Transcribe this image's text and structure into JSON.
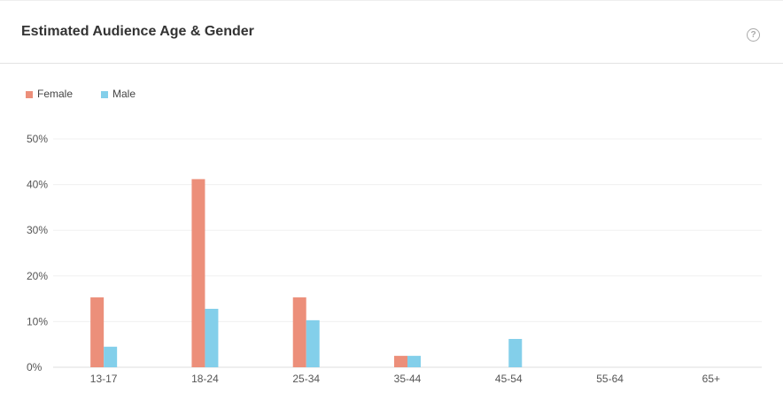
{
  "header": {
    "title": "Estimated Audience Age & Gender",
    "help_icon": "?"
  },
  "colors": {
    "female": "#ec8f7a",
    "male": "#83cfea"
  },
  "chart_data": {
    "type": "bar",
    "title": "Estimated Audience Age & Gender",
    "categories": [
      "13-17",
      "18-24",
      "25-34",
      "35-44",
      "45-54",
      "55-64",
      "65+"
    ],
    "series": [
      {
        "name": "Female",
        "values": [
          15.3,
          41.2,
          15.3,
          2.5,
          0,
          0,
          0
        ]
      },
      {
        "name": "Male",
        "values": [
          4.5,
          12.8,
          10.3,
          2.5,
          6.2,
          0,
          0
        ]
      }
    ],
    "yticks": [
      "0%",
      "10%",
      "20%",
      "30%",
      "40%",
      "50%"
    ],
    "ylim": [
      0,
      50
    ],
    "legend": "top-left",
    "grid": true
  }
}
